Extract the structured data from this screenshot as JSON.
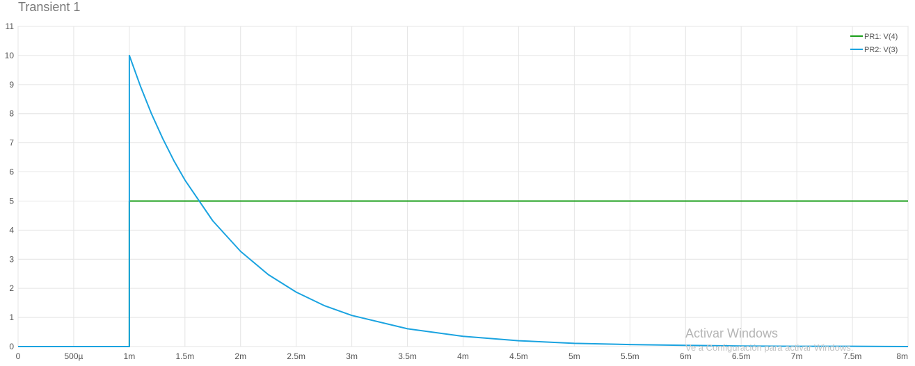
{
  "chart_data": {
    "type": "line",
    "title": "Transient 1",
    "xlim": [
      0,
      0.008
    ],
    "ylim": [
      0,
      11
    ],
    "xticks": [
      0,
      0.0005,
      0.001,
      0.0015,
      0.002,
      0.0025,
      0.003,
      0.0035,
      0.004,
      0.0045,
      0.005,
      0.0055,
      0.006,
      0.0065,
      0.007,
      0.0075,
      0.008
    ],
    "xtick_labels": [
      "0",
      "500µ",
      "1m",
      "1.5m",
      "2m",
      "2.5m",
      "3m",
      "3.5m",
      "4m",
      "4.5m",
      "5m",
      "5.5m",
      "6m",
      "6.5m",
      "7m",
      "7.5m",
      "8m"
    ],
    "yticks": [
      0,
      1,
      2,
      3,
      4,
      5,
      6,
      7,
      8,
      9,
      10,
      11
    ],
    "ytick_labels": [
      "0",
      "1",
      "2",
      "3",
      "4",
      "5",
      "6",
      "7",
      "8",
      "9",
      "10",
      "11"
    ],
    "grid": true,
    "legend_position": "top-right",
    "series": [
      {
        "name": "PR1: V(4)",
        "color": "#1a9e1a",
        "x": [
          0,
          0.001,
          0.001,
          0.008
        ],
        "y": [
          0,
          0,
          5,
          5
        ]
      },
      {
        "name": "PR2: V(3)",
        "color": "#1aa3e0",
        "x": [
          0,
          0.001,
          0.001,
          0.0011,
          0.0012,
          0.0013,
          0.0014,
          0.0015,
          0.00175,
          0.002,
          0.00225,
          0.0025,
          0.00275,
          0.003,
          0.0035,
          0.004,
          0.0045,
          0.005,
          0.0055,
          0.006,
          0.0065,
          0.007,
          0.0075,
          0.008
        ],
        "y": [
          0,
          0,
          10,
          8.94,
          7.99,
          7.15,
          6.39,
          5.72,
          4.32,
          3.27,
          2.47,
          1.87,
          1.41,
          1.07,
          0.61,
          0.35,
          0.2,
          0.11,
          0.07,
          0.04,
          0.02,
          0.01,
          0.01,
          0.0
        ]
      }
    ]
  },
  "watermark": {
    "title": "Activar Windows",
    "subtitle": "Ve a Configuración para activar Windows."
  }
}
